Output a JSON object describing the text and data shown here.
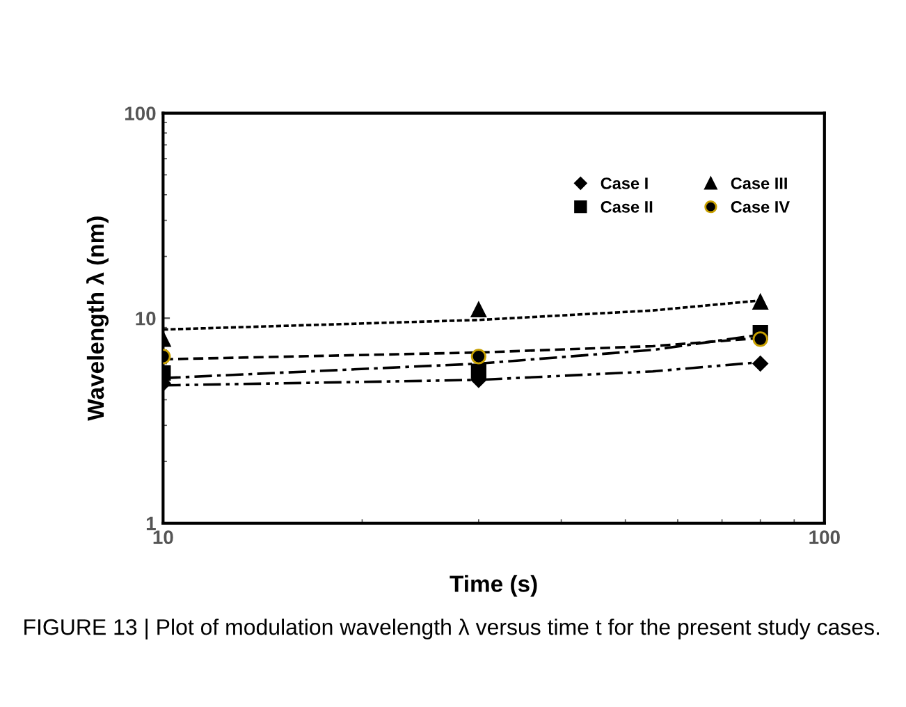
{
  "chart_data": {
    "type": "scatter",
    "xlabel": "Time (s)",
    "ylabel": "Wavelength λ (nm)",
    "log": "xy",
    "xlim": [
      10,
      100
    ],
    "ylim": [
      1,
      100
    ],
    "xticks": [
      10,
      100
    ],
    "yticks": [
      1,
      10,
      100
    ],
    "grid": false,
    "legend": "top right",
    "series": [
      {
        "name": "Case I",
        "marker": "diamond",
        "color": "#000000",
        "x": [
          10,
          30,
          80
        ],
        "values": [
          4.8,
          5.0,
          6.0
        ]
      },
      {
        "name": "Case II",
        "marker": "square",
        "color": "#000000",
        "x": [
          10,
          30,
          80
        ],
        "values": [
          5.4,
          5.5,
          8.5
        ]
      },
      {
        "name": "Case III",
        "marker": "triangle",
        "color": "#000000",
        "x": [
          10,
          30,
          80
        ],
        "values": [
          7.9,
          11,
          12
        ]
      },
      {
        "name": "Case IV",
        "marker": "circle",
        "color": "#000000",
        "x": [
          10,
          30,
          80
        ],
        "values": [
          6.5,
          6.5,
          7.9
        ]
      },
      {
        "type": "line",
        "line_style": "dashdotdot",
        "color": "#000000",
        "x": [
          10,
          30,
          55,
          80
        ],
        "values": [
          4.7,
          5.0,
          5.5,
          6.1
        ]
      },
      {
        "type": "line",
        "line_style": "dashdot",
        "color": "#000000",
        "x": [
          10,
          30,
          55,
          80
        ],
        "values": [
          5.1,
          6.0,
          7.0,
          8.3
        ]
      },
      {
        "type": "line",
        "line_style": "dotted",
        "color": "#000000",
        "x": [
          10,
          30,
          55,
          80
        ],
        "values": [
          8.8,
          9.8,
          10.9,
          12.2
        ]
      },
      {
        "type": "line",
        "line_style": "dashed",
        "color": "#000000",
        "x": [
          10,
          30,
          55,
          80
        ],
        "values": [
          6.3,
          6.8,
          7.3,
          8.0
        ]
      }
    ],
    "annotations": [
      "FIGURE 13 | Plot of modulation wavelength λ versus time t for the present study cases."
    ]
  }
}
